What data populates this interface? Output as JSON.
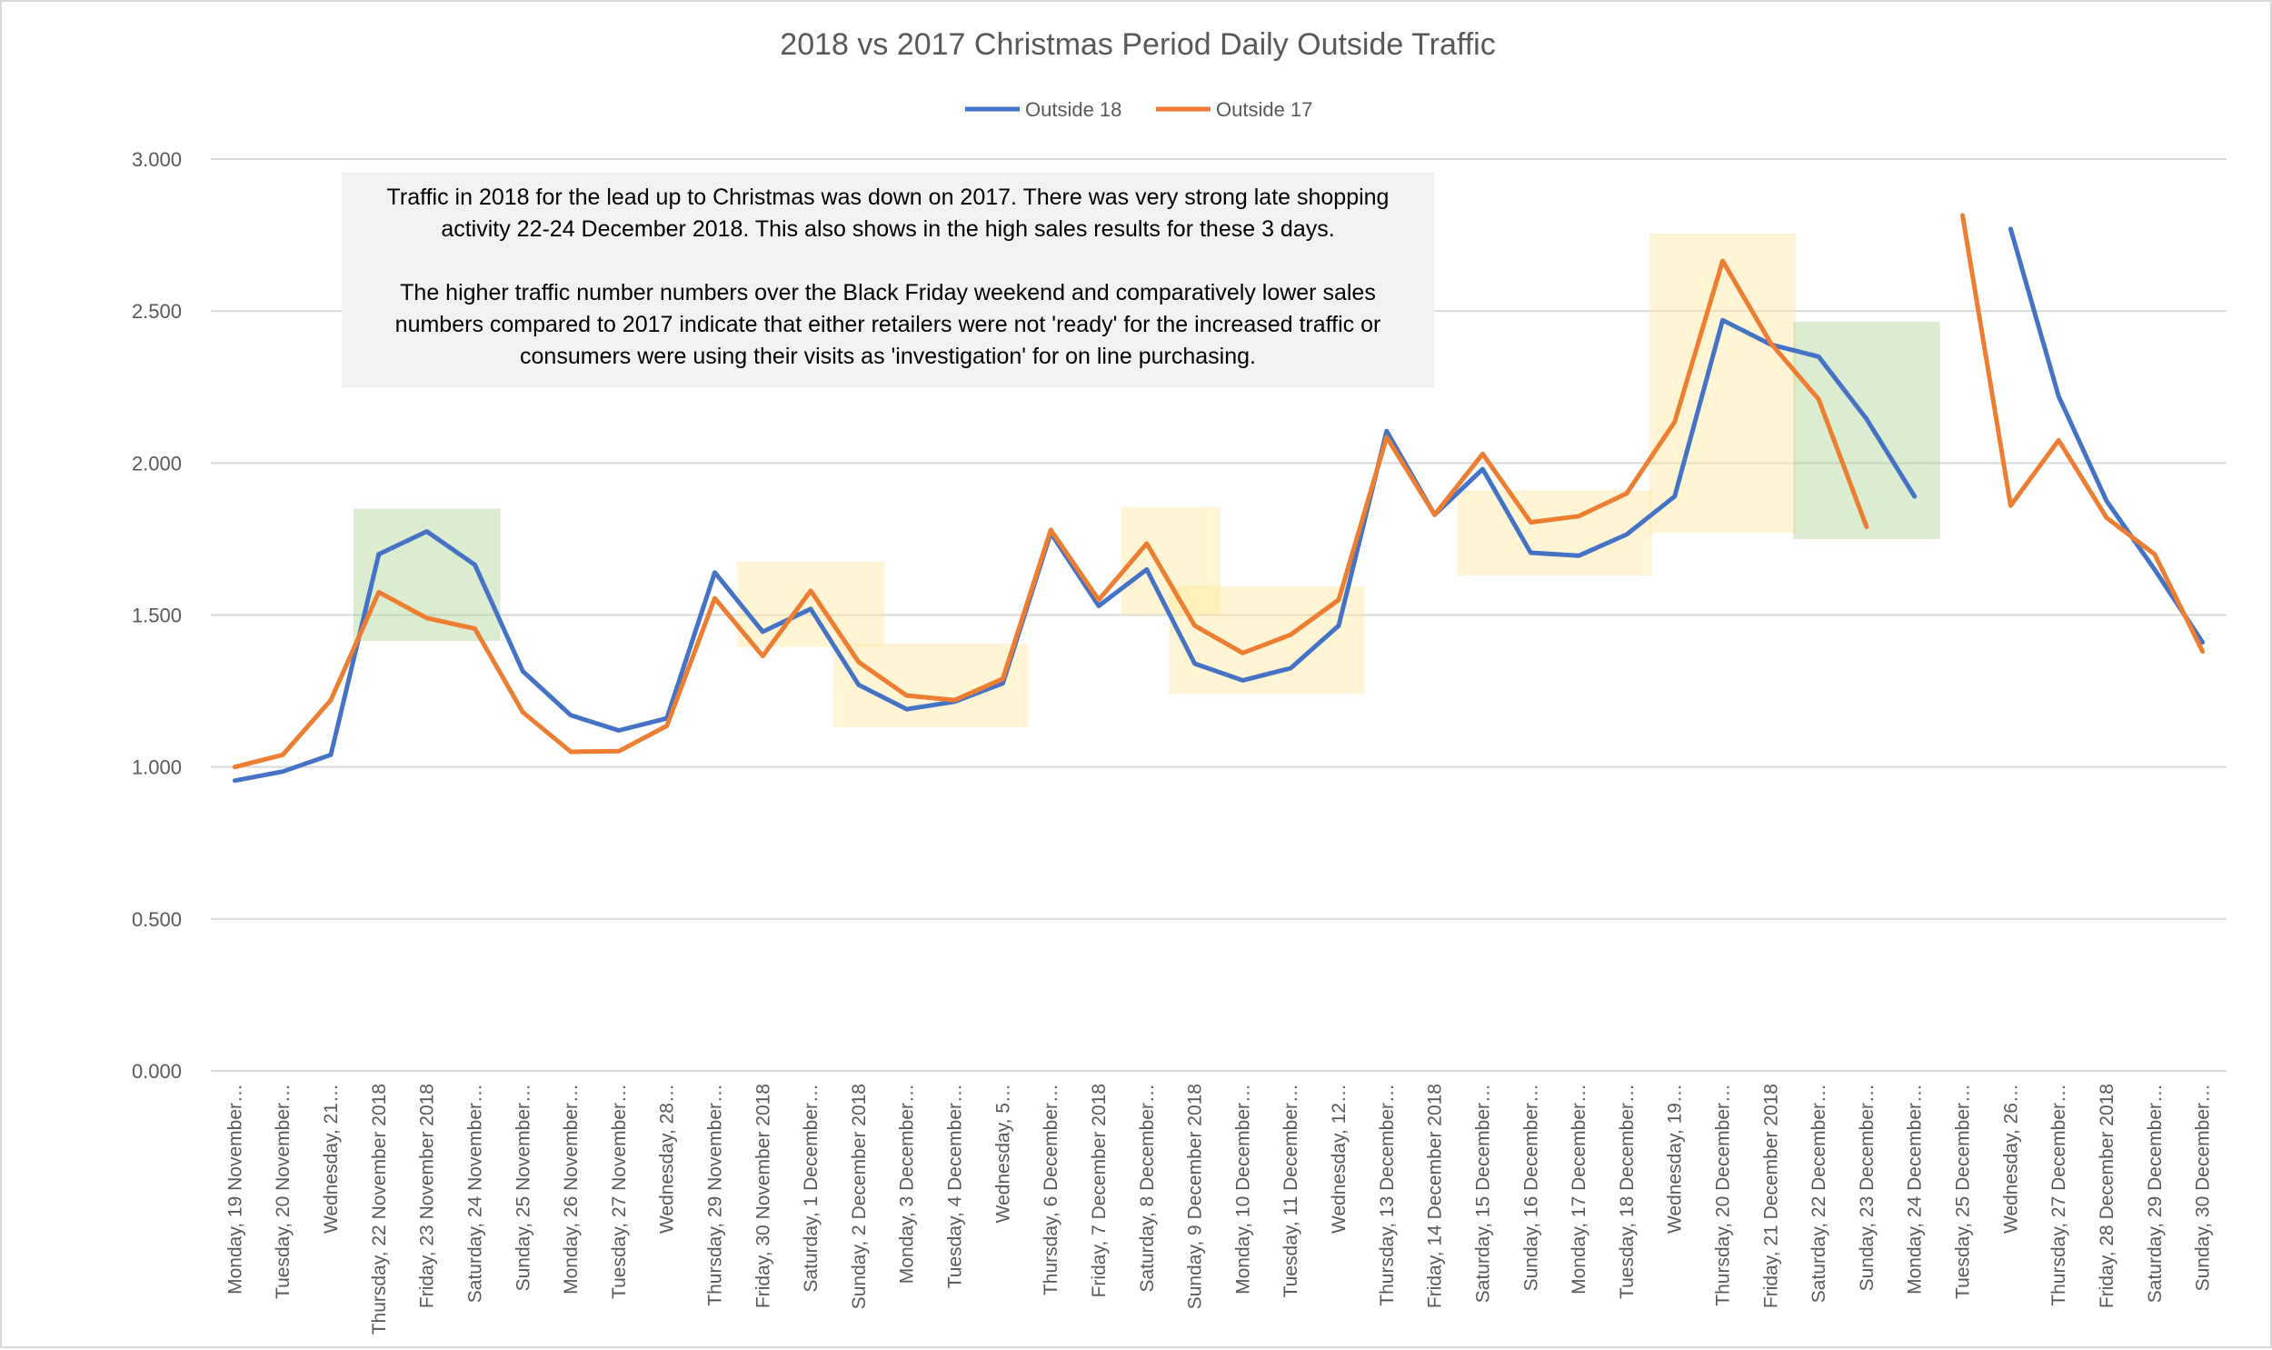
{
  "chart_data": {
    "type": "line",
    "title": "2018 vs 2017 Christmas Period Daily Outside Traffic",
    "xlabel": "",
    "ylabel": "",
    "ylim": [
      0,
      3
    ],
    "yticks": [
      "0.000",
      "0.500",
      "1.000",
      "1.500",
      "2.000",
      "2.500",
      "3.000"
    ],
    "grid": "horizontal",
    "legend": "top-center",
    "categories": [
      "Monday, 19 November…",
      "Tuesday, 20 November…",
      "Wednesday, 21…",
      "Thursday, 22 November 2018",
      "Friday, 23 November 2018",
      "Saturday, 24 November…",
      "Sunday, 25 November…",
      "Monday, 26 November…",
      "Tuesday, 27 November…",
      "Wednesday, 28…",
      "Thursday, 29 November…",
      "Friday, 30 November 2018",
      "Saturday, 1 December…",
      "Sunday, 2 December 2018",
      "Monday, 3 December…",
      "Tuesday, 4 December…",
      "Wednesday, 5…",
      "Thursday, 6 December…",
      "Friday, 7 December 2018",
      "Saturday, 8 December…",
      "Sunday, 9 December 2018",
      "Monday, 10 December…",
      "Tuesday, 11 December…",
      "Wednesday, 12…",
      "Thursday, 13 December…",
      "Friday, 14 December 2018",
      "Saturday, 15 December…",
      "Sunday, 16 December…",
      "Monday, 17 December…",
      "Tuesday, 18 December…",
      "Wednesday, 19…",
      "Thursday, 20 December…",
      "Friday, 21 December 2018",
      "Saturday, 22 December…",
      "Sunday, 23 December…",
      "Monday, 24 December…",
      "Tuesday, 25 December…",
      "Wednesday, 26…",
      "Thursday, 27 December…",
      "Friday, 28 December 2018",
      "Saturday, 29 December…",
      "Sunday, 30 December…"
    ],
    "series": [
      {
        "name": "Outside 18",
        "color": "#4472c4",
        "values": [
          0.955,
          0.985,
          1.04,
          1.7,
          1.775,
          1.665,
          1.315,
          1.17,
          1.12,
          1.16,
          1.64,
          1.445,
          1.52,
          1.27,
          1.19,
          1.215,
          1.275,
          1.77,
          1.53,
          1.65,
          1.34,
          1.285,
          1.325,
          1.465,
          2.105,
          1.83,
          1.98,
          1.705,
          1.695,
          1.765,
          1.89,
          2.47,
          2.39,
          2.35,
          2.145,
          1.89,
          null,
          2.77,
          2.22,
          1.875,
          1.65,
          1.41
        ]
      },
      {
        "name": "Outside 17",
        "color": "#ed7d31",
        "values": [
          1.0,
          1.04,
          1.22,
          1.575,
          1.49,
          1.455,
          1.18,
          1.05,
          1.052,
          1.135,
          1.555,
          1.365,
          1.58,
          1.345,
          1.235,
          1.22,
          1.29,
          1.78,
          1.55,
          1.735,
          1.465,
          1.375,
          1.435,
          1.55,
          2.085,
          1.83,
          2.03,
          1.805,
          1.825,
          1.9,
          2.135,
          2.665,
          2.395,
          2.21,
          1.79,
          null,
          2.815,
          1.86,
          2.075,
          1.82,
          1.7,
          1.38
        ]
      }
    ],
    "annotation": {
      "paragraphs": [
        "Traffic in 2018 for the lead up to Christmas was down on 2017. There was very strong late shopping activity 22-24 December 2018. This also shows in the high sales results for these 3 days.",
        "The higher traffic number numbers over the Black Friday weekend and comparatively lower sales numbers compared to 2017 indicate that either retailers were not 'ready' for the increased traffic or consumers were using their visits as 'investigation' for on line purchasing."
      ]
    },
    "highlights": [
      {
        "kind": "green",
        "color": "#a9d18e",
        "from": "Thursday, 22 November 2018",
        "to": "Saturday, 24 November…",
        "y_range": [
          1.415,
          1.85
        ]
      },
      {
        "kind": "yellow",
        "color": "#ffe699",
        "from": "Friday, 30 November 2018",
        "to": "Sunday, 2 December 2018",
        "y_range": [
          1.395,
          1.675
        ]
      },
      {
        "kind": "yellow",
        "color": "#ffe699",
        "from": "Sunday, 2 December 2018",
        "to": "Wednesday, 5…",
        "y_range": [
          1.13,
          1.405
        ]
      },
      {
        "kind": "yellow",
        "color": "#ffe699",
        "from": "Saturday, 8 December…",
        "to": "Sunday, 9 December 2018",
        "y_range": [
          1.5,
          1.855
        ]
      },
      {
        "kind": "yellow",
        "color": "#ffe699",
        "from": "Sunday, 9 December 2018",
        "to": "Wednesday, 12…",
        "y_range": [
          1.24,
          1.595
        ]
      },
      {
        "kind": "yellow",
        "color": "#ffe699",
        "from": "Saturday, 15 December…",
        "to": "Tuesday, 18 December…",
        "y_range": [
          1.63,
          1.91
        ]
      },
      {
        "kind": "yellow",
        "color": "#ffe699",
        "from": "Wednesday, 19…",
        "to": "Friday, 21 December 2018",
        "y_range": [
          1.77,
          2.755
        ]
      },
      {
        "kind": "green",
        "color": "#a9d18e",
        "from": "Saturday, 22 December…",
        "to": "Monday, 24 December…",
        "y_range": [
          1.75,
          2.465
        ]
      }
    ]
  }
}
